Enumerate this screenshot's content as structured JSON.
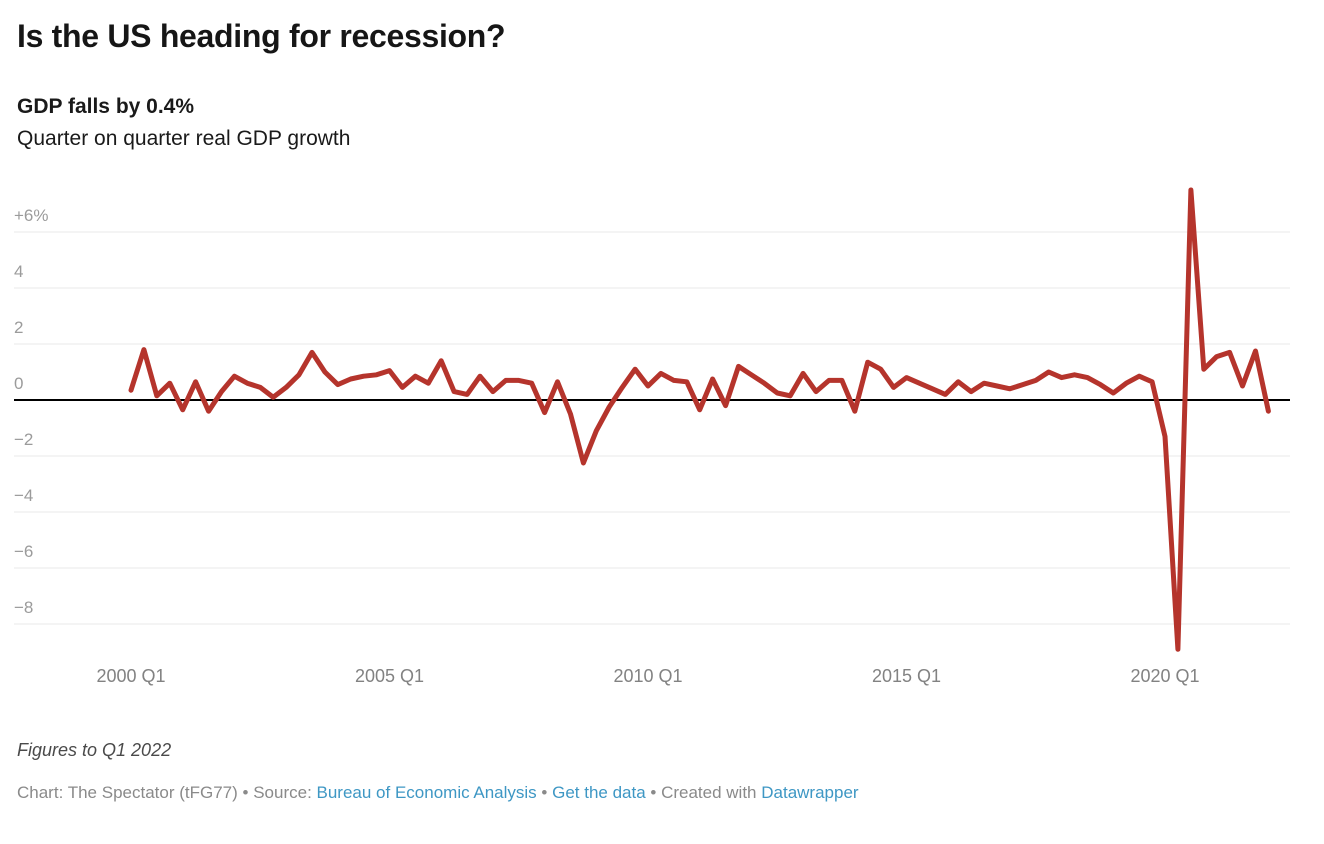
{
  "header": {
    "title": "Is the US heading for recession?",
    "subtitle_bold": "GDP falls by 0.4%",
    "subtitle": "Quarter on quarter real GDP growth"
  },
  "chart_data": {
    "type": "line",
    "title": "Is the US heading for recession?",
    "subtitle": "GDP falls by 0.4%",
    "ylabel": "Quarter on quarter real GDP growth (%)",
    "xlabel": "",
    "grid": "horizontal",
    "legend_position": "none",
    "line_color": "#b5342c",
    "zero_line_color": "#000000",
    "grid_color": "#e9e9e9",
    "ylim": [
      -9.3,
      7.8
    ],
    "y_ticks": [
      {
        "value": 6,
        "label": "+6%"
      },
      {
        "value": 4,
        "label": "4"
      },
      {
        "value": 2,
        "label": "2"
      },
      {
        "value": 0,
        "label": "0"
      },
      {
        "value": -2,
        "label": "−2"
      },
      {
        "value": -4,
        "label": "−4"
      },
      {
        "value": -6,
        "label": "−6"
      },
      {
        "value": -8,
        "label": "−8"
      }
    ],
    "x_ticks": [
      {
        "index": 0,
        "label": "2000 Q1"
      },
      {
        "index": 20,
        "label": "2005 Q1"
      },
      {
        "index": 40,
        "label": "2010 Q1"
      },
      {
        "index": 60,
        "label": "2015 Q1"
      },
      {
        "index": 80,
        "label": "2020 Q1"
      }
    ],
    "series": [
      {
        "name": "Quarter on quarter real GDP growth",
        "start": "2000 Q1",
        "end": "2022 Q1",
        "frequency": "quarterly",
        "values": [
          0.35,
          1.8,
          0.15,
          0.6,
          -0.35,
          0.65,
          -0.4,
          0.3,
          0.85,
          0.6,
          0.45,
          0.1,
          0.45,
          0.9,
          1.7,
          1.0,
          0.55,
          0.75,
          0.85,
          0.9,
          1.05,
          0.45,
          0.85,
          0.6,
          1.4,
          0.3,
          0.2,
          0.85,
          0.3,
          0.7,
          0.7,
          0.6,
          -0.45,
          0.65,
          -0.5,
          -2.25,
          -1.1,
          -0.25,
          0.45,
          1.1,
          0.5,
          0.95,
          0.7,
          0.65,
          -0.35,
          0.75,
          -0.2,
          1.2,
          0.9,
          0.6,
          0.25,
          0.15,
          0.95,
          0.3,
          0.7,
          0.7,
          -0.4,
          1.35,
          1.1,
          0.45,
          0.8,
          0.6,
          0.4,
          0.2,
          0.65,
          0.3,
          0.6,
          0.5,
          0.4,
          0.55,
          0.7,
          1.0,
          0.8,
          0.9,
          0.8,
          0.55,
          0.25,
          0.6,
          0.85,
          0.65,
          -1.3,
          -8.9,
          7.5,
          1.1,
          1.55,
          1.7,
          0.5,
          1.75,
          -0.4
        ]
      }
    ]
  },
  "footer": {
    "note": "Figures to Q1 2022",
    "byline": [
      {
        "text": "Chart: "
      },
      {
        "text": "The Spectator (tFG77)"
      },
      {
        "text": " • "
      },
      {
        "text": "Source: "
      },
      {
        "text": "Bureau of Economic Analysis",
        "link": true
      },
      {
        "text": " • "
      },
      {
        "text": "Get the data",
        "link": true
      },
      {
        "text": " • "
      },
      {
        "text": "Created with "
      },
      {
        "text": "Datawrapper",
        "link": true
      }
    ]
  }
}
